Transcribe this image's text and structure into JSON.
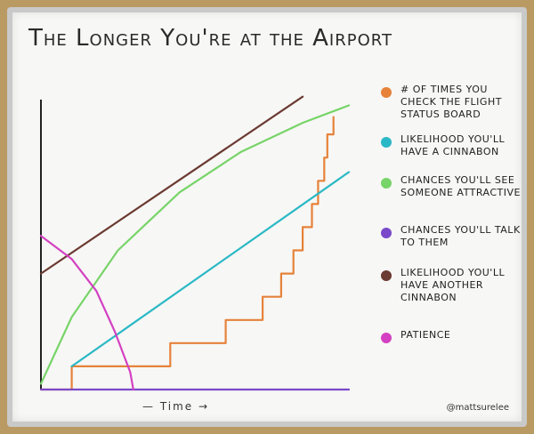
{
  "chart_data": {
    "type": "line",
    "title": "The Longer You're at the Airport",
    "xlabel": "— Time →",
    "ylabel": "",
    "xlim": [
      0,
      100
    ],
    "ylim": [
      0,
      100
    ],
    "series": [
      {
        "name": "# of times you check the flight status board",
        "color": "#e6823a",
        "points": [
          [
            0,
            0
          ],
          [
            10,
            0
          ],
          [
            10,
            8
          ],
          [
            42,
            8
          ],
          [
            42,
            16
          ],
          [
            60,
            16
          ],
          [
            60,
            24
          ],
          [
            72,
            24
          ],
          [
            72,
            32
          ],
          [
            78,
            32
          ],
          [
            78,
            40
          ],
          [
            82,
            40
          ],
          [
            82,
            48
          ],
          [
            85,
            48
          ],
          [
            85,
            56
          ],
          [
            88,
            56
          ],
          [
            88,
            64
          ],
          [
            90,
            64
          ],
          [
            90,
            72
          ],
          [
            92,
            72
          ],
          [
            92,
            80
          ],
          [
            93,
            80
          ],
          [
            93,
            88
          ],
          [
            95,
            88
          ],
          [
            95,
            94
          ]
        ]
      },
      {
        "name": "Likelihood you'll have a Cinnabon",
        "color": "#2bb8c6",
        "points": [
          [
            10,
            8
          ],
          [
            100,
            75
          ]
        ]
      },
      {
        "name": "Chances you'll see someone attractive",
        "color": "#77d468",
        "points": [
          [
            0,
            2
          ],
          [
            10,
            25
          ],
          [
            25,
            48
          ],
          [
            45,
            68
          ],
          [
            65,
            82
          ],
          [
            85,
            92
          ],
          [
            100,
            98
          ]
        ]
      },
      {
        "name": "Chances you'll talk to them",
        "color": "#7a49c9",
        "points": [
          [
            0,
            0
          ],
          [
            100,
            0
          ]
        ]
      },
      {
        "name": "Likelihood you'll have another Cinnabon",
        "color": "#6b3a32",
        "points": [
          [
            0,
            40
          ],
          [
            85,
            101
          ]
        ]
      },
      {
        "name": "Patience",
        "color": "#d341c2",
        "points": [
          [
            0,
            53
          ],
          [
            10,
            45
          ],
          [
            18,
            34
          ],
          [
            24,
            20
          ],
          [
            29,
            6
          ],
          [
            30,
            0
          ]
        ]
      }
    ]
  },
  "watermark": "@mattsurelee"
}
